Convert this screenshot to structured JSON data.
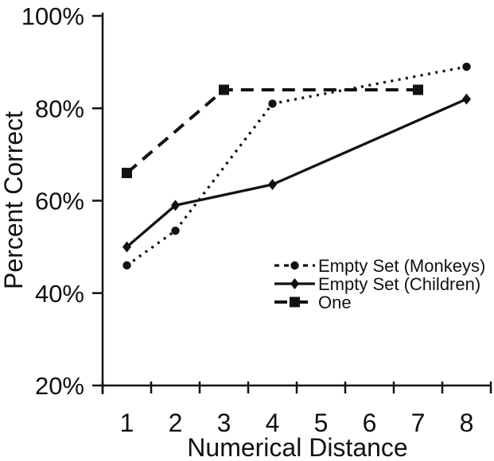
{
  "chart_data": {
    "type": "line",
    "title": "",
    "xlabel": "Numerical Distance",
    "ylabel": "Percent Correct",
    "grid": false,
    "legend_position": "inside-bottom-right",
    "ylim": [
      20,
      100
    ],
    "y_ticks": [
      {
        "label": "20%",
        "value": 20
      },
      {
        "label": "40%",
        "value": 40
      },
      {
        "label": "60%",
        "value": 60
      },
      {
        "label": "80%",
        "value": 80
      },
      {
        "label": "100%",
        "value": 100
      }
    ],
    "x_ticks": [
      {
        "label": "1",
        "value": 1
      },
      {
        "label": "2",
        "value": 2
      },
      {
        "label": "3",
        "value": 3
      },
      {
        "label": "4",
        "value": 4
      },
      {
        "label": "5",
        "value": 5
      },
      {
        "label": "6",
        "value": 6
      },
      {
        "label": "7",
        "value": 7
      },
      {
        "label": "8",
        "value": 8
      }
    ],
    "series": [
      {
        "name": "Empty Set (Monkeys)",
        "marker": "circle",
        "line_style": "dotted",
        "color": "#111111",
        "x": [
          1,
          2,
          4,
          8
        ],
        "y": [
          46,
          53.5,
          81,
          89
        ]
      },
      {
        "name": "Empty Set (Children)",
        "marker": "diamond",
        "line_style": "solid",
        "color": "#111111",
        "x": [
          1,
          2,
          4,
          8
        ],
        "y": [
          50,
          59,
          63.5,
          82
        ]
      },
      {
        "name": "One",
        "marker": "square",
        "line_style": "dashed",
        "color": "#111111",
        "x": [
          1,
          3,
          7
        ],
        "y": [
          66,
          84,
          84
        ]
      }
    ]
  }
}
